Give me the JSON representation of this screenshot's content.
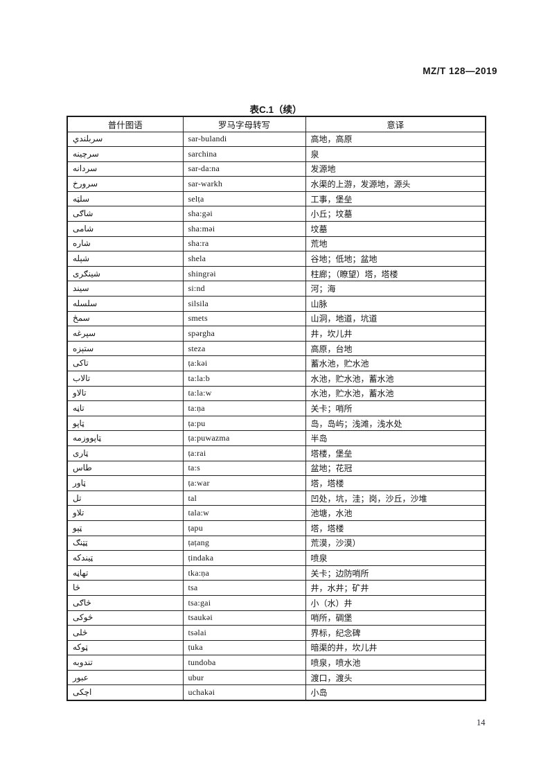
{
  "page": {
    "doc_number": "MZ/T 128—2019",
    "page_number": "14"
  },
  "table": {
    "title": "表C.1（续）",
    "columns": [
      "普什图语",
      "罗马字母转写",
      "意译"
    ],
    "rows": [
      {
        "pashto": "سربلندي",
        "roman": "sar-bulandi",
        "meaning": "高地，高原"
      },
      {
        "pashto": "سرچينه",
        "roman": "sarchina",
        "meaning": "泉"
      },
      {
        "pashto": "سردانه",
        "roman": "sar-da:na",
        "meaning": "发源地"
      },
      {
        "pashto": "سرورخ",
        "roman": "sar-warkh",
        "meaning": "水渠的上游，发源地，源头"
      },
      {
        "pashto": "سلټه",
        "roman": "selṭa",
        "meaning": "工事，堡垒"
      },
      {
        "pashto": "شاګی",
        "roman": "sha:gəi",
        "meaning": "小丘；坟墓"
      },
      {
        "pashto": "شامی",
        "roman": "sha:məi",
        "meaning": "坟墓"
      },
      {
        "pashto": "شاره",
        "roman": "sha:ra",
        "meaning": "荒地"
      },
      {
        "pashto": "شېله",
        "roman": "shela",
        "meaning": "谷地；低地；盆地"
      },
      {
        "pashto": "شینګری",
        "roman": "shingrəi",
        "meaning": "柱廊；（瞭望）塔，塔楼"
      },
      {
        "pashto": "سیند",
        "roman": "si:nd",
        "meaning": "河；海"
      },
      {
        "pashto": "سلسله",
        "roman": "silsila",
        "meaning": "山脉"
      },
      {
        "pashto": "سمڅ",
        "roman": "smets",
        "meaning": "山洞，地道，坑道"
      },
      {
        "pashto": "سپرغه",
        "roman": "spərgha",
        "meaning": "井，坎儿井"
      },
      {
        "pashto": "ستېزه",
        "roman": "steza",
        "meaning": "高原，台地"
      },
      {
        "pashto": "تاکی",
        "roman": "ṭa:kəi",
        "meaning": "蓄水池，贮水池"
      },
      {
        "pashto": "تالاب",
        "roman": "ta:la:b",
        "meaning": "水池，贮水池，蓄水池"
      },
      {
        "pashto": "تالاو",
        "roman": "ta:la:w",
        "meaning": "水池，贮水池，蓄水池"
      },
      {
        "pashto": "تاڼه",
        "roman": "ta:ṇa",
        "meaning": "关卡；哨所"
      },
      {
        "pashto": "ټاپو",
        "roman": "ṭa:pu",
        "meaning": "岛，岛屿；浅滩，浅水处"
      },
      {
        "pashto": "ټاپووزمه",
        "roman": "ṭa:puwazma",
        "meaning": "半岛"
      },
      {
        "pashto": "ټاری",
        "roman": "ṭa:rai",
        "meaning": "塔楼，堡垒"
      },
      {
        "pashto": "طاس",
        "roman": "ta:s",
        "meaning": "盆地；花冠"
      },
      {
        "pashto": "ټاور",
        "roman": "ṭa:war",
        "meaning": "塔，塔楼"
      },
      {
        "pashto": "تل",
        "roman": "tal",
        "meaning": "凹处，坑，洼；岗，沙丘，沙堆"
      },
      {
        "pashto": "تلاو",
        "roman": "tala:w",
        "meaning": "池塘，水池"
      },
      {
        "pashto": "ټپو",
        "roman": "ṭapu",
        "meaning": "塔，塔楼"
      },
      {
        "pashto": "ټټنګ",
        "roman": "ṭaṭang",
        "meaning": "荒漠，沙漠）"
      },
      {
        "pashto": "ټیندکه",
        "roman": "ṭindaka",
        "meaning": "喷泉"
      },
      {
        "pashto": "تهاڼه",
        "roman": "tka:ṇa",
        "meaning": "关卡；边防哨所"
      },
      {
        "pashto": "څا",
        "roman": "tsa",
        "meaning": "井，水井；矿井"
      },
      {
        "pashto": "څاګی",
        "roman": "tsa:gai",
        "meaning": "小（水）井"
      },
      {
        "pashto": "څوکی",
        "roman": "tsaukəi",
        "meaning": "哨所，碉堡"
      },
      {
        "pashto": "څلی",
        "roman": "tsəlai",
        "meaning": "界标，纪念碑"
      },
      {
        "pashto": "ټوکه",
        "roman": "ṭuka",
        "meaning": "暗渠的井，坎儿井"
      },
      {
        "pashto": "تندوبه",
        "roman": "tundoba",
        "meaning": "喷泉，喷水池"
      },
      {
        "pashto": "عبور",
        "roman": "ubur",
        "meaning": "渡口，渡头"
      },
      {
        "pashto": "اچکی",
        "roman": "uchakəi",
        "meaning": "小岛"
      }
    ]
  }
}
